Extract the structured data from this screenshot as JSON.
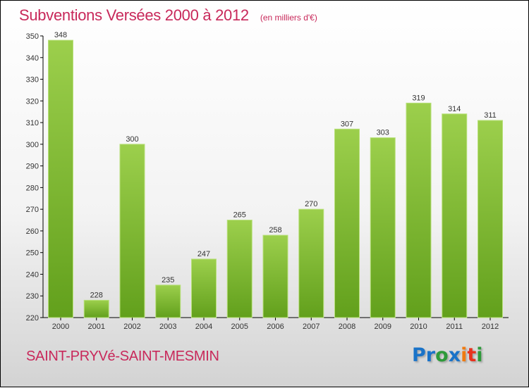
{
  "header": {
    "title": "Subventions Versées 2000 à 2012",
    "unit": "(en milliers d'€)"
  },
  "footer": {
    "commune": "SAINT-PRYVé-SAINT-MESMIN",
    "logo": "Proxiti"
  },
  "colors": {
    "bar_top": "#9ccf4c",
    "bar_bottom": "#62a01c",
    "title": "#c8285a"
  },
  "chart_data": {
    "type": "bar",
    "title": "Subventions Versées 2000 à 2012",
    "ylabel": "(en milliers d'€)",
    "categories": [
      "2000",
      "2001",
      "2002",
      "2003",
      "2004",
      "2005",
      "2006",
      "2007",
      "2008",
      "2009",
      "2010",
      "2011",
      "2012"
    ],
    "values": [
      348,
      228,
      300,
      235,
      247,
      265,
      258,
      270,
      307,
      303,
      319,
      314,
      311
    ],
    "ylim": [
      220,
      350
    ],
    "yticks": [
      220,
      230,
      240,
      250,
      260,
      270,
      280,
      290,
      300,
      310,
      320,
      330,
      340,
      350
    ],
    "grid": false
  }
}
